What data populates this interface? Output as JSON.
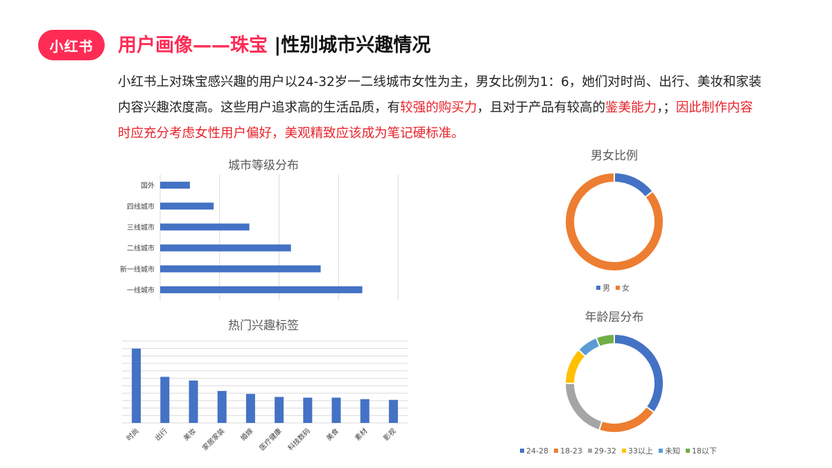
{
  "header": {
    "logo_text": "小红书",
    "title_red": "用户画像——珠宝",
    "title_black": " |性别城市兴趣情况"
  },
  "description": {
    "part1": "小红书上对珠宝感兴趣的用户以24-32岁一二线城市女性为主，男女比例为1：6，她们对时尚、出行、美妆和家装内容兴趣浓度高。这些用户追求高的生活品质，有",
    "part2_red": "较强的购买力",
    "part3": "，且对于产品有较高的",
    "part4_red": "鉴美能力",
    "part5": "，；",
    "part6_red": "因此制作内容时应充分考虑女性用户偏好，美观精致应该成为笔记硬标准。"
  },
  "colors": {
    "bar": "#4472c4",
    "grid": "#d9d9d9",
    "male": "#4472c4",
    "female": "#ed7d31"
  },
  "chart_data": [
    {
      "type": "bar",
      "orientation": "horizontal",
      "title": "城市等级分布",
      "categories": [
        "国外",
        "四线城市",
        "三线城市",
        "二线城市",
        "新一线城市",
        "一线城市"
      ],
      "values": [
        5,
        9,
        15,
        22,
        27,
        34
      ],
      "xlim": [
        0,
        40
      ],
      "grid": true
    },
    {
      "type": "bar",
      "orientation": "vertical",
      "title": "热门兴趣标签",
      "categories": [
        "时尚",
        "出行",
        "美妆",
        "家居家装",
        "婚嫁",
        "医疗健康",
        "科技数码",
        "美食",
        "素材",
        "影视"
      ],
      "values": [
        100,
        62,
        57,
        43,
        39,
        35,
        34,
        34,
        32,
        31
      ],
      "ylim": [
        0,
        110
      ],
      "grid": true
    },
    {
      "type": "pie",
      "donut": true,
      "title": "男女比例",
      "labels": [
        "男",
        "女"
      ],
      "values": [
        1,
        6
      ],
      "colors": [
        "#4472c4",
        "#ed7d31"
      ],
      "legend": "bottom"
    },
    {
      "type": "pie",
      "donut": true,
      "title": "年龄层分布",
      "labels": [
        "24-28",
        "18-23",
        "29-32",
        "33以上",
        "未知",
        "18以下"
      ],
      "values": [
        35,
        20,
        20,
        12,
        7,
        6
      ],
      "colors": [
        "#4472c4",
        "#ed7d31",
        "#a5a5a5",
        "#ffc000",
        "#5b9bd5",
        "#70ad47"
      ],
      "legend": "bottom"
    }
  ]
}
